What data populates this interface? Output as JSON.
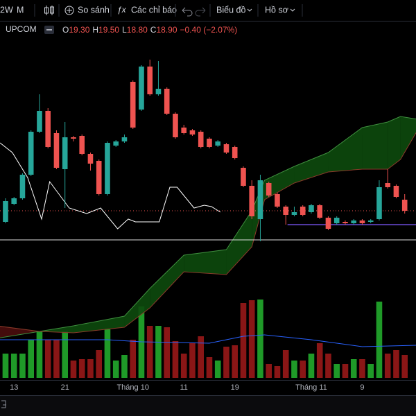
{
  "toolbar": {
    "interval": "2W",
    "interval2": "M",
    "compare": "So sánh",
    "indicators": "Các chỉ báo",
    "chart_menu": "Biểu đồ",
    "profile": "Hồ sơ"
  },
  "legend": {
    "exchange": "UPCOM",
    "open_label": "O",
    "open": "19.30",
    "high_label": "H",
    "high": "19.50",
    "low_label": "L",
    "low": "18.80",
    "close_label": "C",
    "close": "18.90",
    "change": "−0.40 (−2.07%)"
  },
  "chart_data": {
    "type": "candlestick",
    "x": [
      0,
      1,
      2,
      3,
      4,
      5,
      6,
      7,
      8,
      9,
      10,
      11,
      12,
      13,
      14,
      15,
      16,
      17,
      18,
      19,
      20,
      21,
      22,
      23,
      24,
      25,
      26,
      27,
      28,
      29,
      30,
      31,
      32,
      33,
      34,
      35,
      36,
      37,
      38,
      39,
      40,
      41,
      42,
      43,
      44,
      45,
      46,
      47
    ],
    "open": [
      18.5,
      19.15,
      19.35,
      20.2,
      21.75,
      22.5,
      21.7,
      20.4,
      21.55,
      21.6,
      20.95,
      20.7,
      19.5,
      21.25,
      21.4,
      23.55,
      22.55,
      24.1,
      23.1,
      23.3,
      22.4,
      21.9,
      21.8,
      21.75,
      21.5,
      21.25,
      21.3,
      21.2,
      20.45,
      19.8,
      18.6,
      19.9,
      19.5,
      19.05,
      18.75,
      19.05,
      18.85,
      19.1,
      18.65,
      18.45,
      18.5,
      18.45,
      18.55,
      18.5,
      18.6,
      19.9,
      19.8,
      19.3
    ],
    "high": [
      19.35,
      19.4,
      20.25,
      21.8,
      23.1,
      22.6,
      21.8,
      22.1,
      21.6,
      21.65,
      21.0,
      20.75,
      21.4,
      21.45,
      21.65,
      23.6,
      24.15,
      24.35,
      24.3,
      23.35,
      22.45,
      22.0,
      21.85,
      21.8,
      21.55,
      21.45,
      21.35,
      21.25,
      20.5,
      20.0,
      20.2,
      19.95,
      19.55,
      19.1,
      19.05,
      19.1,
      19.15,
      19.15,
      18.7,
      18.7,
      18.55,
      18.6,
      18.6,
      18.6,
      20.0,
      20.4,
      19.85,
      19.5
    ],
    "low": [
      18.45,
      19.1,
      19.3,
      20.15,
      21.7,
      21.15,
      20.4,
      19.0,
      21.4,
      20.9,
      20.35,
      19.45,
      19.45,
      21.2,
      21.35,
      21.85,
      22.5,
      23.05,
      23.05,
      22.35,
      21.5,
      21.65,
      21.6,
      21.15,
      21.15,
      21.2,
      20.95,
      20.75,
      19.75,
      18.6,
      17.8,
      19.4,
      19.0,
      18.4,
      18.7,
      18.7,
      18.8,
      18.6,
      18.2,
      18.4,
      18.4,
      18.4,
      18.4,
      18.45,
      18.55,
      19.7,
      19.35,
      18.8
    ],
    "close": [
      19.25,
      19.35,
      20.2,
      21.75,
      22.5,
      21.2,
      20.45,
      21.55,
      21.5,
      20.95,
      20.6,
      19.5,
      21.35,
      21.4,
      21.55,
      21.9,
      24.1,
      23.1,
      23.3,
      22.4,
      21.55,
      21.7,
      21.65,
      21.2,
      21.2,
      21.4,
      21.0,
      20.8,
      19.8,
      18.7,
      20.0,
      19.45,
      19.05,
      18.75,
      18.85,
      18.75,
      19.1,
      18.65,
      18.25,
      18.65,
      18.45,
      18.55,
      18.45,
      18.55,
      19.75,
      19.75,
      19.4,
      18.9
    ],
    "volume": [
      35,
      35,
      35,
      55,
      67,
      55,
      55,
      67,
      25,
      27,
      27,
      40,
      70,
      25,
      33,
      55,
      103,
      75,
      75,
      73,
      53,
      35,
      50,
      60,
      30,
      25,
      45,
      47,
      108,
      112,
      113,
      20,
      17,
      40,
      25,
      25,
      35,
      50,
      35,
      20,
      20,
      27,
      27,
      20,
      110,
      35,
      40,
      33
    ],
    "ylim": [
      12.8,
      25.75
    ],
    "xlim": [
      -0.65,
      48.33
    ],
    "vlim": [
      0,
      120
    ],
    "xticks": [
      {
        "value": 1,
        "label": "13"
      },
      {
        "value": 7,
        "label": "21"
      },
      {
        "value": 15,
        "label": "Tháng 10"
      },
      {
        "value": 21,
        "label": "11"
      },
      {
        "value": 27,
        "label": "19"
      },
      {
        "value": 36,
        "label": "Tháng 11"
      },
      {
        "value": 42,
        "label": "9"
      }
    ],
    "up_color": "#26a69a",
    "down_color": "#ef5350",
    "vol_up_color": "#1f9a28",
    "vol_down_color": "#8a1616",
    "cloud": {
      "x": [
        -1,
        4,
        8,
        14,
        17,
        21,
        26,
        29,
        30.5,
        34,
        38,
        42,
        45,
        46.5,
        48.5
      ],
      "span_a": [
        14.3,
        14.55,
        14.75,
        15.1,
        16.1,
        17.3,
        17.5,
        18.9,
        20.0,
        20.5,
        21.0,
        21.9,
        22.1,
        22.3,
        22.2
      ],
      "span_b": [
        14.75,
        14.55,
        14.5,
        14.7,
        15.4,
        16.7,
        16.6,
        17.6,
        19.3,
        19.9,
        20.3,
        20.4,
        20.4,
        20.75,
        21.8
      ],
      "up_color": "#0d4a0d",
      "down_color": "#4a0d0d",
      "a_color": "#3f8f3f",
      "b_color": "#8a3a2a"
    },
    "lagging": {
      "x": [
        -0.65,
        0.8,
        2.6,
        4.25,
        5.2,
        7.5,
        9.55,
        11.2,
        13.2,
        14.45,
        15.3,
        18.1,
        19.35,
        20.2,
        22.2,
        23.4,
        24.25,
        25.3
      ],
      "values": [
        21.35,
        21.0,
        20.1,
        18.6,
        19.95,
        19.0,
        18.8,
        19.0,
        18.25,
        18.6,
        18.5,
        18.5,
        19.75,
        19.75,
        19.0,
        19.1,
        19.05,
        18.85
      ],
      "color": "#ffffff"
    },
    "base_line": {
      "x": [
        33.2,
        48.33
      ],
      "values": [
        18.4,
        18.4
      ],
      "color": "#6a4bd8"
    },
    "level": 17.85,
    "volume_ma": {
      "x": [
        -0.65,
        12,
        16,
        24,
        28,
        30.5,
        36,
        42,
        48.33
      ],
      "values": [
        55,
        55,
        52,
        50,
        60,
        62,
        55,
        45,
        47
      ],
      "color": "#2962ff"
    }
  }
}
